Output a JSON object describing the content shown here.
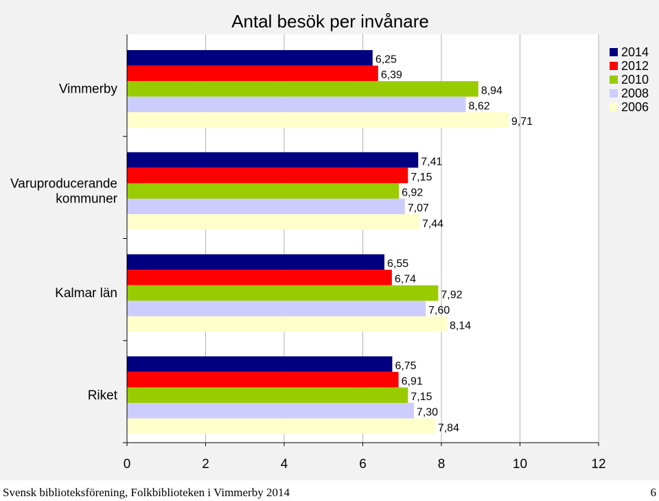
{
  "chart_data": {
    "type": "bar",
    "orientation": "horizontal",
    "title": "Antal besök per invånare",
    "categories": [
      "Vimmerby",
      "Varuproducerande kommuner",
      "Kalmar län",
      "Riket"
    ],
    "category_display": [
      [
        "Vimmerby"
      ],
      [
        "Varuproducerande",
        "kommuner"
      ],
      [
        "Kalmar län"
      ],
      [
        "Riket"
      ]
    ],
    "series": [
      {
        "name": "2014",
        "color": "#000080",
        "values": [
          6.25,
          7.41,
          6.55,
          6.75
        ],
        "labels": [
          "6,25",
          "7,41",
          "6,55",
          "6,75"
        ]
      },
      {
        "name": "2012",
        "color": "#ff0000",
        "values": [
          6.39,
          7.15,
          6.74,
          6.91
        ],
        "labels": [
          "6,39",
          "7,15",
          "6,74",
          "6,91"
        ]
      },
      {
        "name": "2010",
        "color": "#99cc00",
        "values": [
          8.94,
          6.92,
          7.92,
          7.15
        ],
        "labels": [
          "8,94",
          "6,92",
          "7,92",
          "7,15"
        ]
      },
      {
        "name": "2008",
        "color": "#ccccff",
        "values": [
          8.62,
          7.07,
          7.6,
          7.3
        ],
        "labels": [
          "8,62",
          "7,07",
          "7,60",
          "7,30"
        ]
      },
      {
        "name": "2006",
        "color": "#ffffcc",
        "values": [
          9.71,
          7.44,
          8.14,
          7.84
        ],
        "labels": [
          "9,71",
          "7,44",
          "8,14",
          "7,84"
        ]
      }
    ],
    "xlim": [
      0,
      12
    ],
    "xticks": [
      "0",
      "2",
      "4",
      "6",
      "8",
      "10",
      "12"
    ],
    "grid": "vertical",
    "legend": "top-right",
    "xlabel": "",
    "ylabel": ""
  },
  "footer": {
    "source": "Svensk biblioteksförening, Folkbiblioteken i Vimmerby 2014",
    "page": "6"
  }
}
